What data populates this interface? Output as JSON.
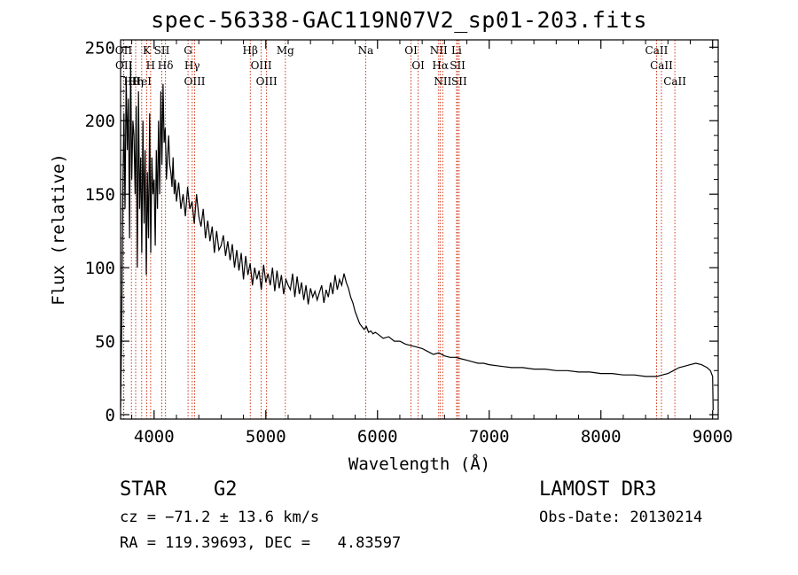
{
  "chart_data": {
    "type": "line",
    "title": "spec-56338-GAC119N07V2_sp01-203.fits",
    "xlabel": "Wavelength (Å)",
    "ylabel": "Flux (relative)",
    "xlim": [
      3700,
      9050
    ],
    "ylim": [
      -3,
      255
    ],
    "xticks": [
      4000,
      5000,
      6000,
      7000,
      8000,
      9000
    ],
    "yticks": [
      0,
      50,
      100,
      150,
      200,
      250
    ],
    "series": [
      {
        "name": "flux",
        "x": [
          3700,
          3710,
          3720,
          3730,
          3740,
          3750,
          3760,
          3770,
          3780,
          3790,
          3800,
          3810,
          3820,
          3830,
          3840,
          3850,
          3860,
          3870,
          3880,
          3890,
          3900,
          3910,
          3920,
          3930,
          3940,
          3950,
          3960,
          3970,
          3980,
          3990,
          4000,
          4010,
          4020,
          4030,
          4040,
          4050,
          4060,
          4070,
          4080,
          4090,
          4100,
          4110,
          4120,
          4130,
          4140,
          4150,
          4160,
          4170,
          4180,
          4190,
          4200,
          4220,
          4240,
          4260,
          4280,
          4300,
          4320,
          4340,
          4360,
          4380,
          4400,
          4420,
          4440,
          4460,
          4480,
          4500,
          4520,
          4540,
          4560,
          4580,
          4600,
          4620,
          4640,
          4660,
          4680,
          4700,
          4720,
          4740,
          4760,
          4780,
          4800,
          4820,
          4840,
          4860,
          4880,
          4900,
          4920,
          4940,
          4960,
          4980,
          5000,
          5020,
          5040,
          5060,
          5080,
          5100,
          5120,
          5140,
          5160,
          5180,
          5200,
          5220,
          5240,
          5260,
          5280,
          5300,
          5320,
          5340,
          5360,
          5380,
          5400,
          5420,
          5440,
          5460,
          5480,
          5500,
          5520,
          5540,
          5560,
          5580,
          5600,
          5620,
          5640,
          5660,
          5680,
          5700,
          5720,
          5740,
          5760,
          5780,
          5800,
          5820,
          5840,
          5860,
          5880,
          5900,
          5920,
          5940,
          5960,
          5980,
          6000,
          6050,
          6100,
          6150,
          6200,
          6250,
          6300,
          6350,
          6400,
          6450,
          6500,
          6550,
          6600,
          6650,
          6700,
          6750,
          6800,
          6850,
          6900,
          6950,
          7000,
          7100,
          7200,
          7300,
          7400,
          7500,
          7600,
          7700,
          7800,
          7900,
          8000,
          8100,
          8200,
          8300,
          8400,
          8500,
          8550,
          8600,
          8650,
          8700,
          8750,
          8800,
          8850,
          8900,
          8950,
          8980,
          9000,
          9005
        ],
        "y": [
          5,
          60,
          150,
          205,
          140,
          230,
          180,
          215,
          120,
          240,
          160,
          200,
          190,
          150,
          210,
          100,
          220,
          140,
          175,
          110,
          200,
          130,
          180,
          95,
          165,
          120,
          205,
          110,
          175,
          150,
          160,
          115,
          180,
          140,
          200,
          150,
          220,
          170,
          225,
          185,
          195,
          160,
          175,
          190,
          170,
          165,
          155,
          175,
          150,
          160,
          145,
          158,
          140,
          150,
          135,
          155,
          140,
          145,
          130,
          150,
          135,
          128,
          140,
          120,
          132,
          118,
          128,
          110,
          125,
          112,
          115,
          122,
          108,
          118,
          105,
          116,
          100,
          112,
          98,
          110,
          92,
          108,
          95,
          103,
          88,
          100,
          92,
          98,
          85,
          102,
          90,
          96,
          88,
          100,
          84,
          98,
          86,
          95,
          82,
          92,
          88,
          85,
          96,
          80,
          94,
          82,
          90,
          78,
          88,
          75,
          86,
          80,
          84,
          78,
          83,
          88,
          76,
          85,
          80,
          90,
          82,
          95,
          85,
          92,
          88,
          96,
          90,
          86,
          80,
          76,
          70,
          66,
          62,
          60,
          58,
          60,
          56,
          57,
          55,
          56,
          55,
          52,
          53,
          50,
          50,
          48,
          47,
          46,
          45,
          43,
          41,
          42,
          40,
          39,
          39,
          38,
          37,
          36,
          35,
          35,
          34,
          33,
          32,
          32,
          31,
          31,
          30,
          30,
          29,
          29,
          28,
          28,
          27,
          27,
          26,
          26,
          27,
          28,
          30,
          32,
          33,
          34,
          35,
          34,
          32,
          30,
          26,
          3
        ]
      }
    ],
    "lines": [
      {
        "label": "Hθ",
        "wave": 3797
      },
      {
        "label": "OII",
        "wave": 3727
      },
      {
        "label": "OII",
        "wave": 3729
      },
      {
        "label": "Hη",
        "wave": 3835
      },
      {
        "label": "HeI",
        "wave": 3889
      },
      {
        "label": "K",
        "wave": 3934
      },
      {
        "label": "H",
        "wave": 3969
      },
      {
        "label": "SII",
        "wave": 4069
      },
      {
        "label": "Hδ",
        "wave": 4102
      },
      {
        "label": "OIII",
        "wave": 4363
      },
      {
        "label": "Hγ",
        "wave": 4341
      },
      {
        "label": "G",
        "wave": 4304
      },
      {
        "label": "Hβ",
        "wave": 4861
      },
      {
        "label": "OIII",
        "wave": 5007
      },
      {
        "label": "OIII",
        "wave": 4959
      },
      {
        "label": "Mg",
        "wave": 5175
      },
      {
        "label": "Na",
        "wave": 5894
      },
      {
        "label": "OI",
        "wave": 6300
      },
      {
        "label": "OI",
        "wave": 6364
      },
      {
        "label": "Hα",
        "wave": 6563
      },
      {
        "label": "NII",
        "wave": 6548
      },
      {
        "label": "NII",
        "wave": 6584
      },
      {
        "label": "SII",
        "wave": 6717
      },
      {
        "label": "Li",
        "wave": 6708
      },
      {
        "label": "SII",
        "wave": 6731
      },
      {
        "label": "CaII",
        "wave": 8542
      },
      {
        "label": "CaII",
        "wave": 8498
      },
      {
        "label": "CaII",
        "wave": 8662
      }
    ],
    "colors": {
      "spectrum": "#000000",
      "line_marker": "#cc2200"
    }
  },
  "info": {
    "class": "STAR    G2",
    "cz": "cz = −71.2 ± 13.6 km/s",
    "coords": "RA = 119.39693, DEC =   4.83597",
    "survey": "LAMOST DR3",
    "obs_date": "Obs-Date: 20130214"
  }
}
